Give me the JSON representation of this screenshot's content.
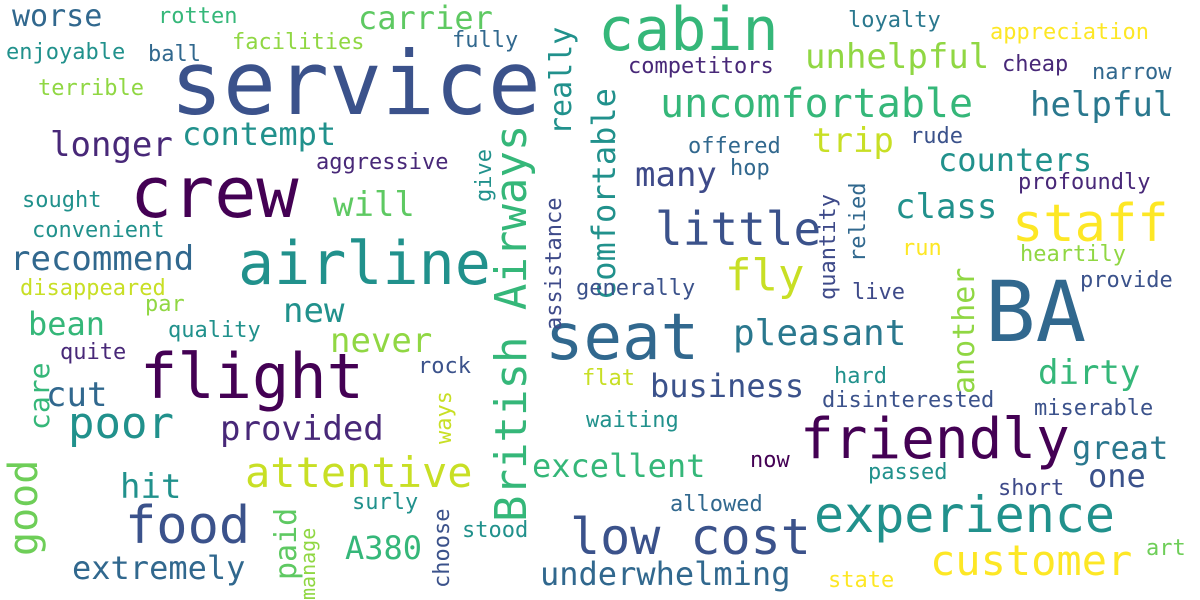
{
  "words": [
    "service",
    "crew",
    "flight",
    "BA",
    "seat",
    "cabin",
    "friendly",
    "airline",
    "staff",
    "British Airways",
    "low cost",
    "experience",
    "food",
    "uncomfortable",
    "attentive",
    "customer",
    "comfortable",
    "little",
    "poor",
    "fly",
    "pleasant",
    "good",
    "another",
    "worse",
    "carrier",
    "unhelpful",
    "helpful",
    "contempt",
    "longer",
    "recommend",
    "really",
    "business",
    "provided",
    "underwhelming",
    "extremely",
    "trip",
    "counters",
    "class",
    "many",
    "great",
    "excellent",
    "dirty",
    "will",
    "new",
    "never",
    "cut",
    "bean",
    "hit",
    "one",
    "A380",
    "assistance",
    "paid",
    "care",
    "rotten",
    "enjoyable",
    "ball",
    "terrible",
    "facilities",
    "fully",
    "loyalty",
    "appreciation",
    "cheap",
    "narrow",
    "competitors",
    "offered",
    "hop",
    "rude",
    "aggressive",
    "sought",
    "convenient",
    "disappeared",
    "par",
    "quality",
    "quite",
    "rock",
    "give",
    "quantity",
    "relied",
    "run",
    "heartily",
    "profoundly",
    "provide",
    "live",
    "generally",
    "flat",
    "hard",
    "disinterested",
    "miserable",
    "waiting",
    "ways",
    "now",
    "passed",
    "short",
    "allowed",
    "surly",
    "stood",
    "choose",
    "manage",
    "state",
    "art"
  ],
  "colors": {
    "dark_purple": "#440154",
    "indigo": "#3b528b",
    "blue": "#31688e",
    "teal": "#21918c",
    "green": "#35b779",
    "lime": "#90d743",
    "yellow": "#fde725"
  }
}
